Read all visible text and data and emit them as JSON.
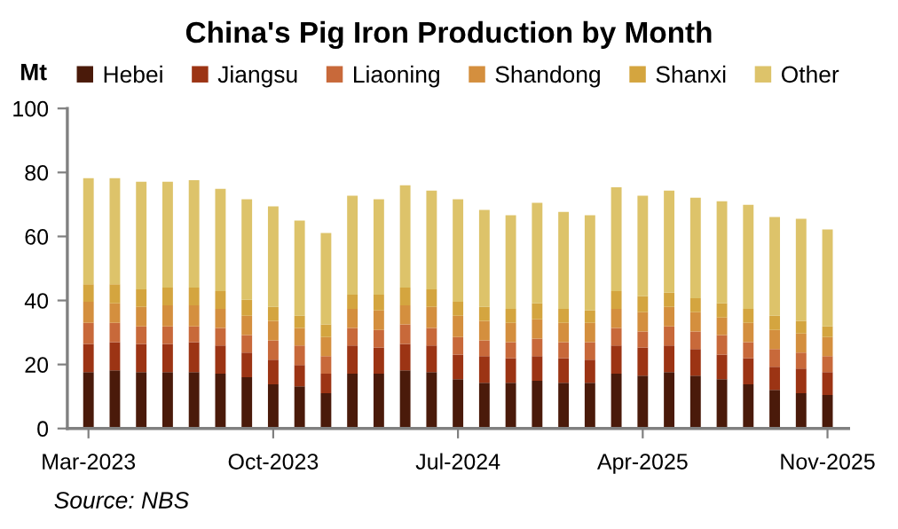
{
  "chart_data": {
    "type": "bar",
    "stacked": true,
    "title": "China's Pig Iron Production by Month",
    "ylabel": "Mt",
    "categories": [
      "Mar-2023",
      null,
      null,
      null,
      null,
      null,
      null,
      "Oct-2023",
      null,
      null,
      null,
      null,
      null,
      null,
      "Jul-2024",
      null,
      null,
      null,
      null,
      null,
      null,
      "Apr-2025",
      null,
      null,
      null,
      null,
      null,
      null,
      "Nov-2025"
    ],
    "series": [
      {
        "name": "Hebei",
        "color": "#4a1a0a",
        "values": [
          17.6,
          18.2,
          17.6,
          17.6,
          17.6,
          17.1,
          16.0,
          13.8,
          13.2,
          11.0,
          17.1,
          17.1,
          18.2,
          17.6,
          15.4,
          14.3,
          14.3,
          14.9,
          14.3,
          14.3,
          17.1,
          16.5,
          17.6,
          16.5,
          15.4,
          13.8,
          12.1,
          11.0,
          10.5
        ]
      },
      {
        "name": "Jiangsu",
        "color": "#9c3414",
        "values": [
          8.8,
          8.8,
          8.8,
          8.8,
          9.4,
          8.8,
          7.7,
          7.7,
          6.6,
          6.1,
          8.8,
          8.2,
          8.2,
          8.3,
          7.7,
          8.3,
          7.7,
          7.7,
          7.7,
          7.2,
          8.8,
          8.8,
          8.3,
          8.3,
          7.7,
          8.2,
          7.2,
          7.7,
          7.1
        ]
      },
      {
        "name": "Liaoning",
        "color": "#c8693a",
        "values": [
          6.6,
          6.0,
          5.5,
          5.5,
          4.9,
          5.5,
          5.5,
          6.0,
          6.1,
          5.5,
          5.5,
          5.5,
          6.1,
          5.5,
          5.5,
          4.9,
          5.0,
          5.5,
          5.0,
          5.5,
          5.5,
          5.0,
          6.0,
          5.5,
          6.1,
          5.0,
          5.5,
          5.0,
          5.0
        ]
      },
      {
        "name": "Shandong",
        "color": "#d48f3e",
        "values": [
          6.6,
          6.1,
          6.1,
          6.6,
          6.6,
          6.0,
          6.0,
          6.1,
          5.5,
          6.0,
          6.0,
          6.1,
          6.0,
          6.6,
          6.6,
          6.1,
          6.0,
          6.0,
          6.0,
          6.0,
          6.0,
          6.0,
          6.1,
          6.0,
          5.5,
          6.0,
          6.0,
          6.0,
          6.0
        ]
      },
      {
        "name": "Shanxi",
        "color": "#d4a53f",
        "values": [
          5.5,
          6.0,
          5.5,
          5.5,
          5.5,
          5.5,
          5.0,
          4.4,
          3.8,
          3.9,
          4.4,
          4.9,
          5.5,
          5.5,
          4.4,
          4.4,
          4.4,
          5.0,
          4.4,
          3.9,
          5.5,
          5.0,
          4.4,
          4.4,
          4.4,
          4.4,
          4.4,
          3.9,
          3.3
        ]
      },
      {
        "name": "Other",
        "color": "#ddc36a",
        "values": [
          33.1,
          33.1,
          33.6,
          33.1,
          33.6,
          32.0,
          31.4,
          31.4,
          29.8,
          28.6,
          30.9,
          29.8,
          32.0,
          30.8,
          32.0,
          30.3,
          29.2,
          31.4,
          30.3,
          29.7,
          32.5,
          31.4,
          31.9,
          31.4,
          31.9,
          32.5,
          30.9,
          31.9,
          30.3
        ]
      }
    ],
    "ylim": [
      0,
      100
    ],
    "yticks": [
      0,
      20,
      40,
      60,
      80,
      100
    ],
    "grid": false,
    "legend": "top",
    "annotations": [
      "Source: NBS"
    ]
  }
}
